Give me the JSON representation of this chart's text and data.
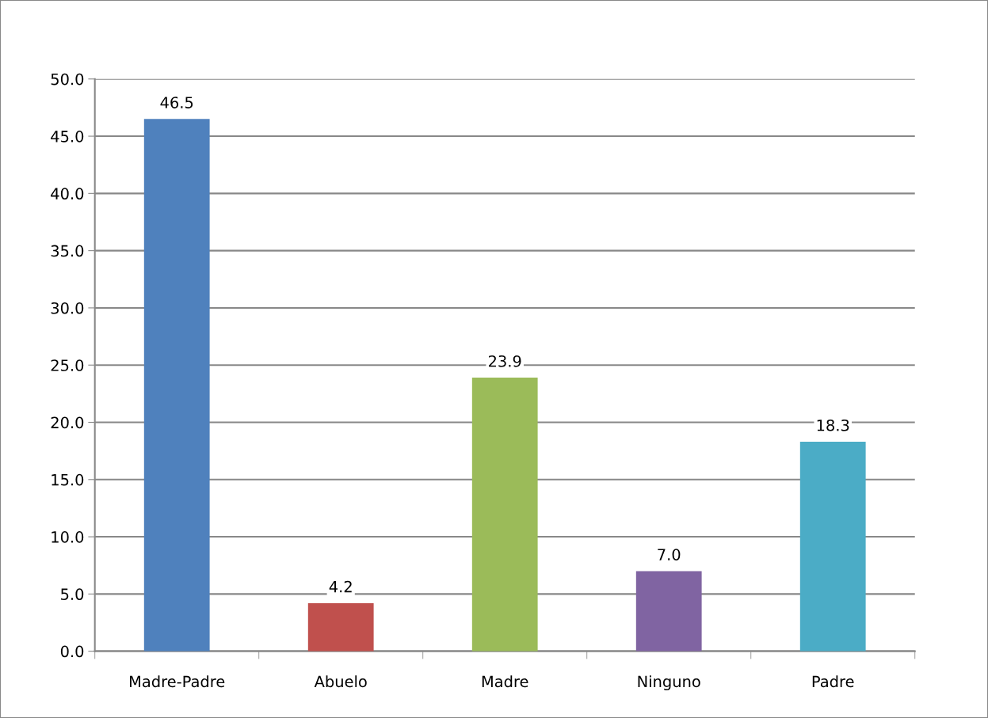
{
  "chart_data": {
    "type": "bar",
    "categories": [
      "Madre-Padre",
      "Abuelo",
      "Madre",
      "Ninguno",
      "Padre"
    ],
    "values": [
      46.5,
      4.2,
      23.9,
      7.0,
      18.3
    ],
    "colors": [
      "#4f81bd",
      "#c0504d",
      "#9bbb59",
      "#8064a2",
      "#4bacc6"
    ],
    "value_labels": [
      "46.5",
      "4.2",
      "23.9",
      "7.0",
      "18.3"
    ],
    "ylim": [
      0,
      50
    ],
    "yticks": [
      {
        "value": 0,
        "label": "0.0"
      },
      {
        "value": 5,
        "label": "5.0"
      },
      {
        "value": 10,
        "label": "10.0"
      },
      {
        "value": 15,
        "label": "15.0"
      },
      {
        "value": 20,
        "label": "20.0"
      },
      {
        "value": 25,
        "label": "25.0"
      },
      {
        "value": 30,
        "label": "30.0"
      },
      {
        "value": 35,
        "label": "35.0"
      },
      {
        "value": 40,
        "label": "40.0"
      },
      {
        "value": 45,
        "label": "45.0"
      },
      {
        "value": 50,
        "label": "50.0"
      }
    ],
    "grid": "y"
  }
}
